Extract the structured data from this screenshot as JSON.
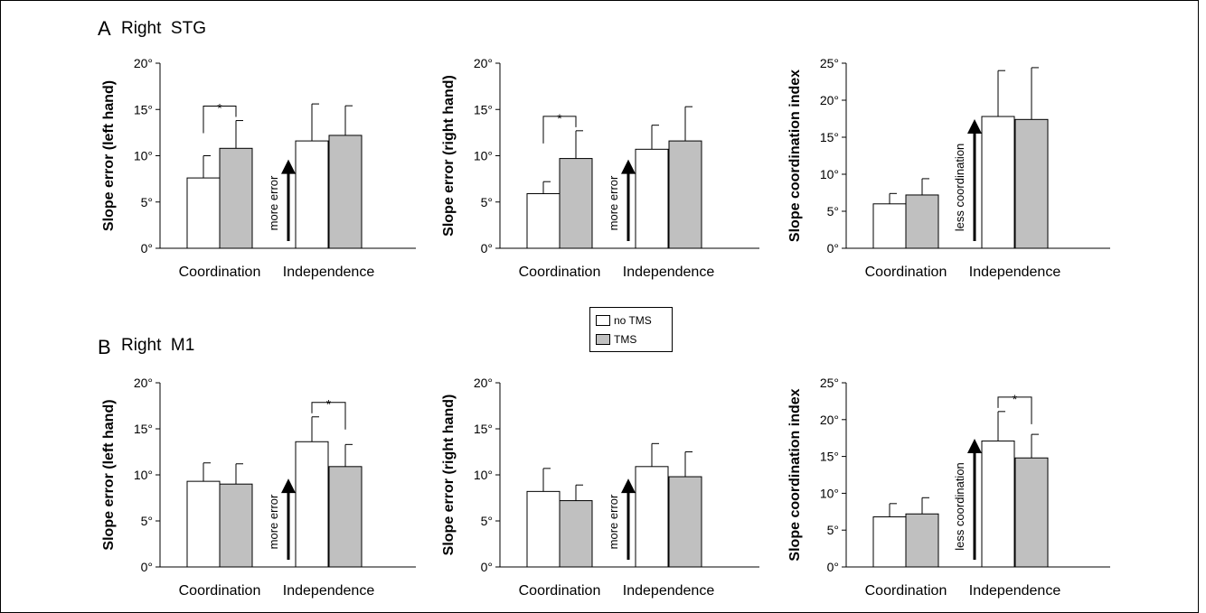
{
  "panels": {
    "A": {
      "letter": "A",
      "region": "Right  STG"
    },
    "B": {
      "letter": "B",
      "region": "Right  M1"
    }
  },
  "legend": [
    {
      "label": "no TMS",
      "color": "#ffffff"
    },
    {
      "label": "TMS",
      "color": "#c0c0c0"
    }
  ],
  "chart_data": [
    {
      "type": "bar",
      "panel": "A",
      "ylabel": "Slope error (left hand)",
      "ylim": [
        0,
        20
      ],
      "yticks": [
        0,
        5,
        10,
        15,
        20
      ],
      "unit": "°",
      "categories": [
        "Coordination",
        "Independence"
      ],
      "series": [
        {
          "name": "no TMS",
          "values": [
            7.6,
            11.6
          ],
          "errors": [
            2.4,
            4.0
          ]
        },
        {
          "name": "TMS",
          "values": [
            10.8,
            12.2
          ],
          "errors": [
            3.0,
            3.2
          ]
        }
      ],
      "significance": [
        {
          "category": 0,
          "label": "*"
        }
      ],
      "arrow_label": "more error"
    },
    {
      "type": "bar",
      "panel": "A",
      "ylabel": "Slope error (right hand)",
      "ylim": [
        0,
        20
      ],
      "yticks": [
        0,
        5,
        10,
        15,
        20
      ],
      "unit": "°",
      "categories": [
        "Coordination",
        "Independence"
      ],
      "series": [
        {
          "name": "no TMS",
          "values": [
            5.9,
            10.7
          ],
          "errors": [
            1.3,
            2.6
          ]
        },
        {
          "name": "TMS",
          "values": [
            9.7,
            11.6
          ],
          "errors": [
            3.0,
            3.7
          ]
        }
      ],
      "significance": [
        {
          "category": 0,
          "label": "*"
        }
      ],
      "arrow_label": "more error"
    },
    {
      "type": "bar",
      "panel": "A",
      "ylabel": "Slope coordination index",
      "ylim": [
        0,
        25
      ],
      "yticks": [
        0,
        5,
        10,
        15,
        20,
        25
      ],
      "unit": "°",
      "categories": [
        "Coordination",
        "Independence"
      ],
      "series": [
        {
          "name": "no TMS",
          "values": [
            6.0,
            17.8
          ],
          "errors": [
            1.4,
            6.2
          ]
        },
        {
          "name": "TMS",
          "values": [
            7.2,
            17.4
          ],
          "errors": [
            2.2,
            7.0
          ]
        }
      ],
      "significance": [],
      "arrow_label": "less coordination"
    },
    {
      "type": "bar",
      "panel": "B",
      "ylabel": "Slope error (left hand)",
      "ylim": [
        0,
        20
      ],
      "yticks": [
        0,
        5,
        10,
        15,
        20
      ],
      "unit": "°",
      "categories": [
        "Coordination",
        "Independence"
      ],
      "series": [
        {
          "name": "no TMS",
          "values": [
            9.3,
            13.6
          ],
          "errors": [
            2.0,
            2.7
          ]
        },
        {
          "name": "TMS",
          "values": [
            9.0,
            10.9
          ],
          "errors": [
            2.2,
            2.4
          ]
        }
      ],
      "significance": [
        {
          "category": 1,
          "label": "*"
        }
      ],
      "arrow_label": "more error"
    },
    {
      "type": "bar",
      "panel": "B",
      "ylabel": "Slope error (right hand)",
      "ylim": [
        0,
        20
      ],
      "yticks": [
        0,
        5,
        10,
        15,
        20
      ],
      "unit": "°",
      "categories": [
        "Coordination",
        "Independence"
      ],
      "series": [
        {
          "name": "no TMS",
          "values": [
            8.2,
            10.9
          ],
          "errors": [
            2.5,
            2.5
          ]
        },
        {
          "name": "TMS",
          "values": [
            7.2,
            9.8
          ],
          "errors": [
            1.7,
            2.7
          ]
        }
      ],
      "significance": [],
      "arrow_label": "more error"
    },
    {
      "type": "bar",
      "panel": "B",
      "ylabel": "Slope coordination index",
      "ylim": [
        0,
        25
      ],
      "yticks": [
        0,
        5,
        10,
        15,
        20,
        25
      ],
      "unit": "°",
      "categories": [
        "Coordination",
        "Independence"
      ],
      "series": [
        {
          "name": "no TMS",
          "values": [
            6.8,
            17.1
          ],
          "errors": [
            1.8,
            4.0
          ]
        },
        {
          "name": "TMS",
          "values": [
            7.2,
            14.8
          ],
          "errors": [
            2.2,
            3.2
          ]
        }
      ],
      "significance": [
        {
          "category": 1,
          "label": "*"
        }
      ],
      "arrow_label": "less coordination"
    }
  ]
}
